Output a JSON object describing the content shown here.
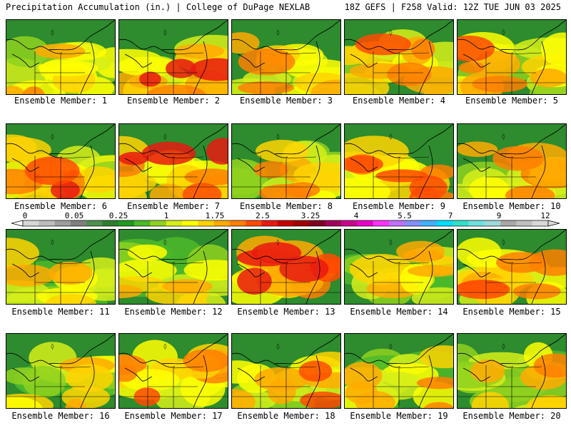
{
  "header": {
    "title": "Precipitation Accumulation (in.) | College of DuPage NEXLAB",
    "run_info": "18Z GEFS | F258 Valid: 12Z TUE JUN 03 2025"
  },
  "panels": [
    {
      "label": "Ensemble Member: 1"
    },
    {
      "label": "Ensemble Member: 2"
    },
    {
      "label": "Ensemble Member: 3"
    },
    {
      "label": "Ensemble Member: 4"
    },
    {
      "label": "Ensemble Member: 5"
    },
    {
      "label": "Ensemble Member: 6"
    },
    {
      "label": "Ensemble Member: 7"
    },
    {
      "label": "Ensemble Member: 8"
    },
    {
      "label": "Ensemble Member: 9"
    },
    {
      "label": "Ensemble Member: 10"
    },
    {
      "label": "Ensemble Member: 11"
    },
    {
      "label": "Ensemble Member: 12"
    },
    {
      "label": "Ensemble Member: 13"
    },
    {
      "label": "Ensemble Member: 14"
    },
    {
      "label": "Ensemble Member: 15"
    },
    {
      "label": "Ensemble Member: 16"
    },
    {
      "label": "Ensemble Member: 17"
    },
    {
      "label": "Ensemble Member: 18"
    },
    {
      "label": "Ensemble Member: 19"
    },
    {
      "label": "Ensemble Member: 20"
    }
  ],
  "colorbar": {
    "tick_labels": [
      "0",
      "0.05",
      "0.25",
      "1",
      "1.75",
      "2.5",
      "3.25",
      "4",
      "5.5",
      "7",
      "9",
      "12"
    ],
    "colors": [
      "#d6d6d6",
      "#bdbdbd",
      "#9e9e9e",
      "#7f7f7f",
      "#4f8f4f",
      "#2e7d2e",
      "#1f9a1f",
      "#4cb82a",
      "#8fd11f",
      "#d6ee1a",
      "#ffff00",
      "#ffd400",
      "#ffaa00",
      "#ff7f00",
      "#ff4a00",
      "#e81a10",
      "#c40000",
      "#a00000",
      "#800020",
      "#a0005a",
      "#c8008c",
      "#e800c8",
      "#ff33ff",
      "#c070ff",
      "#8090ff",
      "#3fb0ff",
      "#00ddff",
      "#30e0c8",
      "#6fe0e0",
      "#9fd8d8",
      "#a8a8a8",
      "#c0c0c0",
      "#d8d8d8"
    ]
  }
}
